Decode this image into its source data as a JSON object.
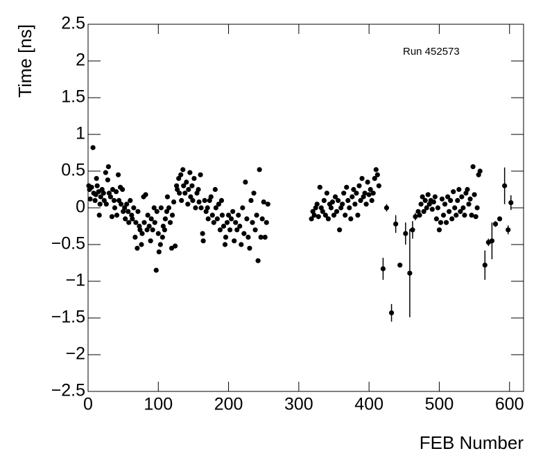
{
  "chart_data": {
    "type": "scatter",
    "x_label": "FEB Number",
    "y_label": "Time [ns]",
    "annotation": "Run 452573",
    "xlim": [
      0,
      620
    ],
    "ylim": [
      -2.5,
      2.5
    ],
    "xticks": [
      0,
      100,
      200,
      300,
      400,
      500,
      600
    ],
    "yticks": [
      {
        "value": -2.5,
        "label": "−2.5"
      },
      {
        "value": -2,
        "label": "−2"
      },
      {
        "value": -1.5,
        "label": "−1.5"
      },
      {
        "value": -1,
        "label": "−1"
      },
      {
        "value": -0.5,
        "label": "−0.5"
      },
      0,
      0.5,
      1,
      1.5,
      2,
      2.5
    ],
    "series": [
      {
        "color": "#000000",
        "x": [
          1,
          2,
          3,
          5,
          7,
          8,
          10,
          11,
          12,
          13,
          15,
          16,
          17,
          18,
          20,
          22,
          23,
          25,
          26,
          28,
          29,
          30,
          32,
          34,
          35,
          37,
          38,
          40,
          41,
          43,
          44,
          46,
          47,
          49,
          50,
          52,
          53,
          55,
          57,
          58,
          60,
          62,
          63,
          65,
          67,
          68,
          70,
          71,
          73,
          74,
          76,
          77,
          79,
          80,
          82,
          84,
          85,
          87,
          89,
          90,
          92,
          94,
          95,
          97,
          98,
          100,
          101,
          103,
          104,
          106,
          107,
          109,
          110,
          112,
          113,
          115,
          117,
          119,
          120,
          122,
          124,
          126,
          127,
          129,
          130,
          132,
          133,
          135,
          136,
          138,
          140,
          142,
          143,
          145,
          146,
          148,
          149,
          151,
          153,
          155,
          157,
          158,
          160,
          161,
          163,
          164,
          166,
          168,
          170,
          171,
          173,
          175,
          177,
          179,
          181,
          182,
          184,
          186,
          188,
          190,
          191,
          193,
          195,
          196,
          198,
          200,
          202,
          204,
          206,
          208,
          210,
          212,
          214,
          216,
          218,
          220,
          222,
          224,
          226,
          228,
          230,
          232,
          234,
          236,
          238,
          240,
          242,
          244,
          246,
          248,
          250,
          252,
          254,
          256,
          318,
          320,
          322,
          324,
          326,
          328,
          330,
          332,
          334,
          336,
          338,
          340,
          342,
          344,
          346,
          348,
          350,
          352,
          354,
          356,
          358,
          360,
          362,
          364,
          366,
          368,
          370,
          372,
          374,
          376,
          378,
          380,
          382,
          384,
          386,
          388,
          390,
          392,
          394,
          396,
          398,
          400,
          402,
          404,
          406,
          408,
          410,
          412,
          414,
          420,
          425,
          432,
          438,
          444,
          452,
          458,
          462,
          466,
          470,
          472,
          474,
          476,
          478,
          480,
          482,
          484,
          486,
          488,
          490,
          492,
          494,
          496,
          498,
          500,
          502,
          504,
          506,
          508,
          510,
          512,
          514,
          516,
          518,
          520,
          522,
          524,
          526,
          528,
          530,
          532,
          534,
          536,
          538,
          540,
          542,
          544,
          546,
          548,
          550,
          552,
          554,
          556,
          558,
          565,
          570,
          575,
          580,
          586,
          593,
          598,
          602
        ],
        "values": [
          0.3,
          0.25,
          0.12,
          0.28,
          0.82,
          0.2,
          0.1,
          0.18,
          0.4,
          0.3,
          0.22,
          -0.1,
          0.05,
          0.15,
          0.25,
          0.2,
          0.1,
          0.48,
          0.05,
          0.38,
          0.56,
          0.2,
          0.15,
          -0.12,
          0.25,
          0.1,
          0,
          0.22,
          -0.1,
          0.45,
          0.1,
          0.28,
          0.05,
          0.25,
          -0.05,
          0,
          -0.15,
          0.05,
          -0.05,
          -0.2,
          0.1,
          -0.1,
          -0.15,
          0,
          -0.4,
          -0.2,
          -0.55,
          -0.05,
          -0.25,
          -0.3,
          -0.5,
          -0.35,
          0.15,
          -0.2,
          0.18,
          -0.3,
          -0.1,
          -0.25,
          -0.45,
          -0.15,
          -0.3,
          0,
          -0.2,
          -0.85,
          -0.05,
          -0.35,
          -0.6,
          -0.5,
          0,
          -0.4,
          -0.25,
          -0.3,
          -0.15,
          -0.05,
          0.15,
          0,
          -0.2,
          -0.55,
          -0.1,
          0.08,
          -0.52,
          0.3,
          0.25,
          0.4,
          0.2,
          0.45,
          0.1,
          0.52,
          0.3,
          0.2,
          0.35,
          0.05,
          0.25,
          0.48,
          0.15,
          0.3,
          0.1,
          0.4,
          0,
          0.2,
          0.25,
          0.08,
          0.45,
          0,
          -0.35,
          -0.45,
          0.1,
          -0.05,
          0,
          -0.15,
          0.1,
          0.15,
          -0.1,
          -0.2,
          0.25,
          0,
          -0.15,
          0.05,
          -0.3,
          0.1,
          -0.1,
          -0.25,
          -0.5,
          -0.4,
          -0.2,
          -0.1,
          -0.3,
          -0.15,
          -0.05,
          -0.45,
          -0.2,
          -0.3,
          -0.1,
          -0.25,
          -0.5,
          0,
          -0.35,
          0.35,
          -0.15,
          -0.4,
          -0.55,
          0.1,
          -0.2,
          0.2,
          -0.3,
          -0.1,
          -0.72,
          0.52,
          -0.4,
          -0.15,
          0.08,
          -0.4,
          -0.2,
          0.05,
          -0.15,
          -0.05,
          -0.1,
          0,
          0.05,
          -0.12,
          0.28,
          0,
          -0.05,
          0.1,
          -0.1,
          0.2,
          -0.15,
          0.05,
          0,
          0.08,
          -0.1,
          0.15,
          -0.05,
          0.1,
          -0.3,
          0,
          0.05,
          0.2,
          -0.1,
          0.28,
          0.1,
          0,
          -0.15,
          0.15,
          0.25,
          0.05,
          0.2,
          -0.1,
          0.3,
          0.1,
          0.4,
          0.15,
          0.2,
          0.05,
          0.35,
          0.18,
          0.25,
          0.1,
          0.2,
          0.4,
          0.52,
          0.45,
          0.3,
          -0.83,
          0,
          -1.43,
          -0.22,
          -0.78,
          -0.35,
          -0.89,
          -0.3,
          -0.12,
          -0.05,
          -0.1,
          0.05,
          0.15,
          -0.05,
          0.1,
          0,
          0.18,
          0.05,
          0.1,
          -0.02,
          0.08,
          0.15,
          -0.15,
          0,
          -0.3,
          -0.2,
          0.12,
          -0.1,
          0.05,
          -0.2,
          0.15,
          -0.05,
          0.1,
          -0.15,
          0.22,
          0,
          -0.1,
          0.1,
          0.25,
          -0.05,
          0.15,
          0,
          -0.1,
          0.2,
          0.25,
          0.05,
          0.12,
          -0.1,
          0.56,
          0.18,
          -0.12,
          0,
          0.45,
          0.5,
          -0.78,
          -0.47,
          -0.45,
          -0.22,
          -0.15,
          0.3,
          -0.3,
          0.07
        ],
        "errors": [
          0.02,
          0.02,
          0.02,
          0.02,
          0.02,
          0.02,
          0.02,
          0.02,
          0.02,
          0.02,
          0.02,
          0.02,
          0.02,
          0.02,
          0.02,
          0.02,
          0.02,
          0.02,
          0.02,
          0.02,
          0.02,
          0.02,
          0.02,
          0.02,
          0.02,
          0.02,
          0.02,
          0.02,
          0.02,
          0.02,
          0.02,
          0.02,
          0.02,
          0.02,
          0.02,
          0.02,
          0.02,
          0.02,
          0.02,
          0.02,
          0.02,
          0.02,
          0.02,
          0.02,
          0.02,
          0.02,
          0.02,
          0.02,
          0.02,
          0.02,
          0.02,
          0.02,
          0.02,
          0.02,
          0.02,
          0.02,
          0.02,
          0.02,
          0.02,
          0.02,
          0.02,
          0.02,
          0.02,
          0.02,
          0.02,
          0.02,
          0.02,
          0.02,
          0.02,
          0.02,
          0.02,
          0.02,
          0.02,
          0.02,
          0.02,
          0.02,
          0.02,
          0.02,
          0.02,
          0.02,
          0.02,
          0.02,
          0.02,
          0.02,
          0.02,
          0.02,
          0.02,
          0.02,
          0.02,
          0.02,
          0.02,
          0.02,
          0.02,
          0.02,
          0.02,
          0.02,
          0.02,
          0.02,
          0.02,
          0.02,
          0.02,
          0.02,
          0.02,
          0.02,
          0.02,
          0.02,
          0.02,
          0.02,
          0.02,
          0.02,
          0.02,
          0.02,
          0.02,
          0.02,
          0.02,
          0.02,
          0.02,
          0.02,
          0.02,
          0.02,
          0.02,
          0.02,
          0.02,
          0.02,
          0.02,
          0.02,
          0.02,
          0.02,
          0.02,
          0.02,
          0.02,
          0.02,
          0.02,
          0.02,
          0.02,
          0.02,
          0.02,
          0.02,
          0.02,
          0.02,
          0.02,
          0.02,
          0.02,
          0.02,
          0.02,
          0.02,
          0.02,
          0.02,
          0.02,
          0.02,
          0.02,
          0.02,
          0.02,
          0.02,
          0.02,
          0.02,
          0.02,
          0.02,
          0.02,
          0.02,
          0.02,
          0.02,
          0.02,
          0.02,
          0.02,
          0.02,
          0.02,
          0.02,
          0.02,
          0.02,
          0.02,
          0.02,
          0.02,
          0.02,
          0.02,
          0.02,
          0.02,
          0.02,
          0.02,
          0.02,
          0.02,
          0.02,
          0.02,
          0.02,
          0.02,
          0.02,
          0.02,
          0.02,
          0.02,
          0.02,
          0.02,
          0.02,
          0.02,
          0.02,
          0.02,
          0.02,
          0.02,
          0.02,
          0.02,
          0.02,
          0.02,
          0.02,
          0.02,
          0.15,
          0.05,
          0.12,
          0.12,
          0.03,
          0.15,
          0.6,
          0.12,
          0.05,
          0.02,
          0.02,
          0.02,
          0.02,
          0.02,
          0.02,
          0.02,
          0.02,
          0.02,
          0.02,
          0.02,
          0.02,
          0.02,
          0.02,
          0.02,
          0.02,
          0.02,
          0.02,
          0.02,
          0.02,
          0.02,
          0.02,
          0.02,
          0.02,
          0.02,
          0.02,
          0.02,
          0.02,
          0.02,
          0.02,
          0.02,
          0.02,
          0.02,
          0.02,
          0.02,
          0.02,
          0.02,
          0.02,
          0.02,
          0.02,
          0.02,
          0.02,
          0.02,
          0.02,
          0.02,
          0.2,
          0.05,
          0.25,
          0.04,
          0.03,
          0.25,
          0.06,
          0.1
        ]
      }
    ]
  }
}
